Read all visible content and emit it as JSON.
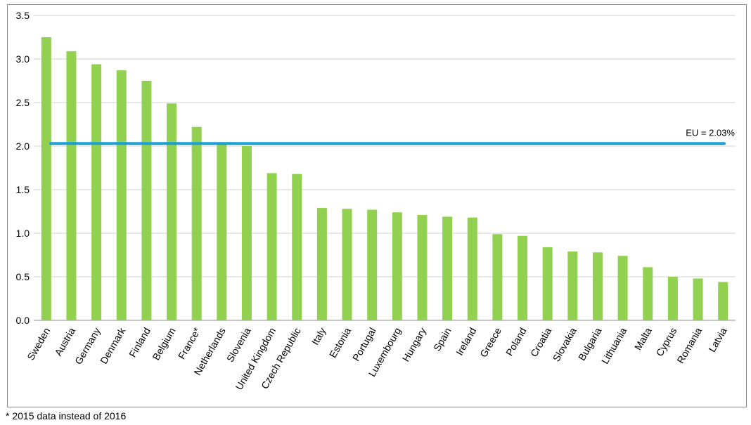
{
  "chart_data": {
    "type": "bar",
    "title": "",
    "xlabel": "",
    "ylabel": "",
    "categories": [
      "Sweden",
      "Austria",
      "Germany",
      "Denmark",
      "Finland",
      "Belgium",
      "France*",
      "Netherlands",
      "Slovenia",
      "United Kingdom",
      "Czech Republic",
      "Italy",
      "Estonia",
      "Portugal",
      "Luxembourg",
      "Hungary",
      "Spain",
      "Ireland",
      "Greece",
      "Poland",
      "Croatia",
      "Slovakia",
      "Bulgaria",
      "Lithuania",
      "Malta",
      "Cyprus",
      "Romania",
      "Latvia"
    ],
    "values": [
      3.25,
      3.09,
      2.94,
      2.87,
      2.75,
      2.49,
      2.22,
      2.03,
      2.0,
      1.69,
      1.68,
      1.29,
      1.28,
      1.27,
      1.24,
      1.21,
      1.19,
      1.18,
      0.99,
      0.97,
      0.84,
      0.79,
      0.78,
      0.74,
      0.61,
      0.5,
      0.48,
      0.44
    ],
    "ylim": [
      0,
      3.5
    ],
    "yticks": [
      "0.0",
      "0.5",
      "1.0",
      "1.5",
      "2.0",
      "2.5",
      "3.0",
      "3.5"
    ],
    "grid": true,
    "bar_color": "#92d050",
    "reference_line": {
      "value": 2.03,
      "label": "EU = 2.03%",
      "color": "#1aa0d8"
    }
  },
  "footnote": "* 2015 data instead of 2016"
}
